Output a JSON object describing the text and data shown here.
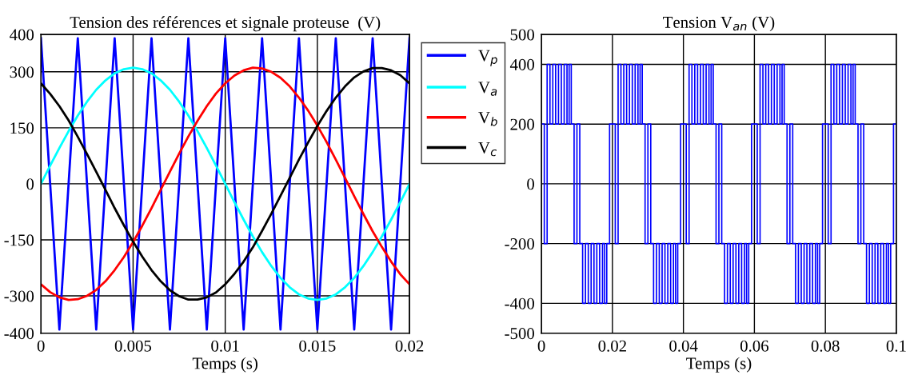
{
  "chart_data": [
    {
      "type": "line",
      "title": "Tension des références et signale proteuse  (V)",
      "xlabel": "Temps (s)",
      "xlim": [
        0,
        0.02
      ],
      "xticks": [
        0,
        0.005,
        0.01,
        0.015,
        0.02
      ],
      "ylim": [
        -400,
        400
      ],
      "yticks": [
        -400,
        -300,
        -150,
        0,
        150,
        300,
        400
      ],
      "grid": true,
      "legend": "top right",
      "line_style": "solid",
      "marker": "none",
      "series": [
        {
          "name": "V$_{p}$",
          "color": "#0000ff",
          "x": [
            0,
            0.001,
            0.002,
            0.003,
            0.004,
            0.005,
            0.006,
            0.007,
            0.008,
            0.009,
            0.01,
            0.011,
            0.012,
            0.013,
            0.014,
            0.015,
            0.016,
            0.017,
            0.018,
            0.019,
            0.02
          ],
          "values": [
            390,
            -390,
            390,
            -390,
            390,
            -390,
            390,
            -390,
            390,
            -390,
            390,
            -390,
            390,
            -390,
            390,
            -390,
            390,
            -390,
            390,
            -390,
            390
          ]
        },
        {
          "name": "V$_{a}$",
          "color": "#00ffff",
          "values": [
            0,
            49,
            96,
            141,
            183,
            220,
            252,
            277,
            296,
            307,
            311,
            307,
            296,
            277,
            252,
            220,
            183,
            141,
            96,
            49,
            0,
            -49,
            -96,
            -141,
            -183,
            -220,
            -252,
            -277,
            -296,
            -307,
            -311,
            -307,
            -296,
            -277,
            -252,
            -220,
            -183,
            -141,
            -96,
            -49,
            0
          ]
        },
        {
          "name": "V$_{b}$",
          "color": "#ff0000",
          "values": [
            -269,
            -290,
            -304,
            -311,
            -309,
            -300,
            -284,
            -261,
            -231,
            -196,
            -156,
            -112,
            -65,
            -16,
            33,
            81,
            127,
            169,
            208,
            242,
            269,
            290,
            304,
            311,
            309,
            300,
            284,
            261,
            231,
            196,
            156,
            112,
            65,
            16,
            -33,
            -81,
            -127,
            -169,
            -208,
            -242,
            -269
          ]
        },
        {
          "name": "V$_{c}$",
          "color": "#000000",
          "values": [
            269,
            241,
            208,
            170,
            126,
            80,
            32,
            -16,
            -65,
            -111,
            -155,
            -195,
            -231,
            -261,
            -285,
            -301,
            -310,
            -310,
            -304,
            -291,
            -269,
            -241,
            -208,
            -170,
            -126,
            -80,
            -32,
            16,
            65,
            111,
            155,
            195,
            231,
            261,
            285,
            301,
            310,
            310,
            304,
            291,
            269
          ]
        }
      ],
      "x": [
        0,
        0.0005,
        0.001,
        0.0015,
        0.002,
        0.0025,
        0.003,
        0.0035,
        0.004,
        0.0045,
        0.005,
        0.0055,
        0.006,
        0.0065,
        0.007,
        0.0075,
        0.008,
        0.0085,
        0.009,
        0.0095,
        0.01,
        0.0105,
        0.011,
        0.0115,
        0.012,
        0.0125,
        0.013,
        0.0135,
        0.014,
        0.0145,
        0.015,
        0.0155,
        0.016,
        0.0165,
        0.017,
        0.0175,
        0.018,
        0.0185,
        0.019,
        0.0195,
        0.02
      ]
    },
    {
      "type": "step",
      "title": "Tension V$_{an}$ (V)",
      "xlabel": "Temps (s)",
      "xlim": [
        0,
        0.1
      ],
      "xticks": [
        0,
        0.02,
        0.04,
        0.06,
        0.08,
        0.1
      ],
      "ylim": [
        -500,
        500
      ],
      "yticks": [
        -500,
        -400,
        -200,
        0,
        200,
        400,
        500
      ],
      "grid": true,
      "line_style": "solid",
      "marker": "none",
      "series": [
        {
          "color": "#0000ff",
          "x": [
            0,
            0.0008,
            0.0016,
            0.0024,
            0.0032,
            0.004,
            0.0048,
            0.0056,
            0.0064,
            0.0072,
            0.0078,
            0.0084,
            0.0092,
            0.01,
            0.0108,
            0.0116,
            0.0124,
            0.0132,
            0.014,
            0.0148,
            0.0156,
            0.0164,
            0.0172,
            0.0178,
            0.0184,
            0.0192,
            0.02,
            0.0208,
            0.0216,
            0.0224,
            0.0232,
            0.024,
            0.0248,
            0.0256,
            0.0264,
            0.0272,
            0.0278,
            0.0284,
            0.0292,
            0.03,
            0.0308,
            0.0316,
            0.0324,
            0.0332,
            0.034,
            0.0348,
            0.0356,
            0.0364,
            0.0372,
            0.0378,
            0.0384,
            0.0392,
            0.04,
            0.0408,
            0.0416,
            0.0424,
            0.0432,
            0.044,
            0.0448,
            0.0456,
            0.0464,
            0.0472,
            0.0478,
            0.0484,
            0.0492,
            0.05,
            0.0508,
            0.0516,
            0.0524,
            0.0532,
            0.054,
            0.0548,
            0.0556,
            0.0564,
            0.0572,
            0.0578,
            0.0584,
            0.0592,
            0.06,
            0.0608,
            0.0616,
            0.0624,
            0.0632,
            0.064,
            0.0648,
            0.0656,
            0.0664,
            0.0672,
            0.0678,
            0.0684,
            0.0692,
            0.07,
            0.0708,
            0.0716,
            0.0724,
            0.0732,
            0.074,
            0.0748,
            0.0756,
            0.0764,
            0.0772,
            0.0778,
            0.0784,
            0.0792,
            0.08,
            0.0808,
            0.0816,
            0.0824,
            0.0832,
            0.084,
            0.0848,
            0.0856,
            0.0864,
            0.0872,
            0.0878,
            0.0884,
            0.0892,
            0.09,
            0.0908,
            0.0916,
            0.0924,
            0.0932,
            0.094,
            0.0948,
            0.0956,
            0.0964,
            0.0972,
            0.0978,
            0.0984,
            0.0992,
            0.1
          ],
          "values": [
            200,
            -200,
            400,
            200,
            400,
            200,
            400,
            200,
            400,
            200,
            400,
            200,
            -200,
            200,
            -200,
            -400,
            -200,
            -400,
            -200,
            -400,
            -200,
            -400,
            -200,
            -400,
            -200,
            200,
            200,
            -200,
            400,
            200,
            400,
            200,
            400,
            200,
            400,
            200,
            400,
            200,
            -200,
            200,
            -200,
            -400,
            -200,
            -400,
            -200,
            -400,
            -200,
            -400,
            -200,
            -400,
            -200,
            200,
            200,
            -200,
            400,
            200,
            400,
            200,
            400,
            200,
            400,
            200,
            400,
            200,
            -200,
            200,
            -200,
            -400,
            -200,
            -400,
            -200,
            -400,
            -200,
            -400,
            -200,
            -400,
            -200,
            200,
            200,
            -200,
            400,
            200,
            400,
            200,
            400,
            200,
            400,
            200,
            400,
            200,
            -200,
            200,
            -200,
            -400,
            -200,
            -400,
            -200,
            -400,
            -200,
            -400,
            -200,
            -400,
            -200,
            200,
            200,
            -200,
            400,
            200,
            400,
            200,
            400,
            200,
            400,
            200,
            400,
            200,
            -200,
            200,
            -200,
            -400,
            -200,
            -400,
            -200,
            -400,
            -200,
            -400,
            -200,
            -400,
            -200,
            200,
            200
          ]
        }
      ]
    }
  ]
}
